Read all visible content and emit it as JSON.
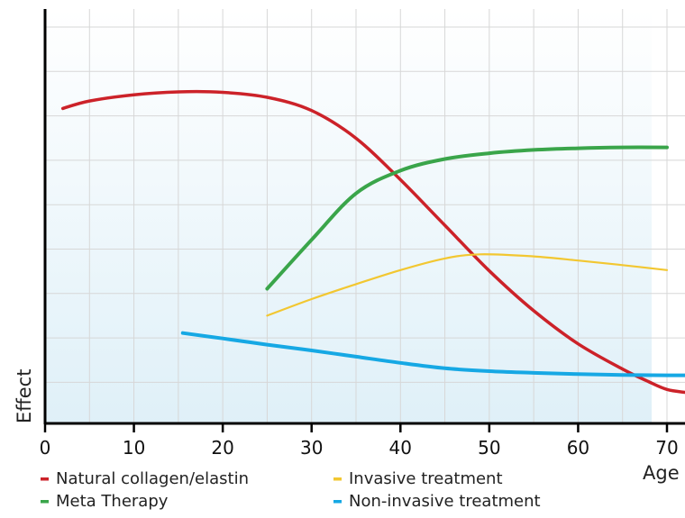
{
  "chart_data": {
    "type": "line",
    "title": "",
    "xlabel": "Age",
    "ylabel": "Effect",
    "xlim": [
      0,
      72
    ],
    "ylim": [
      0,
      10
    ],
    "x_ticks": [
      "0",
      "10",
      "20",
      "30",
      "40",
      "50",
      "60",
      "70"
    ],
    "y_ticks": [],
    "grid": true,
    "legend_position": "bottom",
    "series": [
      {
        "name": "Natural collagen/elastin",
        "color": "#cc2229",
        "x": [
          2,
          5,
          10,
          15,
          20,
          25,
          30,
          35,
          40,
          45,
          50,
          55,
          60,
          65,
          68,
          70,
          72
        ],
        "y": [
          7.6,
          7.78,
          7.93,
          8.0,
          7.99,
          7.87,
          7.55,
          6.88,
          5.88,
          4.78,
          3.68,
          2.72,
          1.92,
          1.31,
          1.0,
          0.82,
          0.75
        ]
      },
      {
        "name": "Meta Therapy",
        "color": "#3aa54a",
        "x": [
          25,
          30,
          35,
          40,
          45,
          50,
          55,
          60,
          65,
          70
        ],
        "y": [
          3.25,
          4.43,
          5.55,
          6.1,
          6.38,
          6.52,
          6.6,
          6.64,
          6.66,
          6.66
        ]
      },
      {
        "name": "Invasive treatment",
        "color": "#f2c731",
        "x": [
          25,
          30,
          35,
          40,
          45,
          49,
          55,
          60,
          65,
          70
        ],
        "y": [
          2.6,
          3.0,
          3.36,
          3.7,
          3.98,
          4.08,
          4.03,
          3.93,
          3.82,
          3.7
        ]
      },
      {
        "name": "Non-invasive treatment",
        "color": "#16a8e4",
        "x": [
          15.5,
          20,
          25,
          30,
          35,
          40,
          45,
          50,
          55,
          60,
          65,
          70,
          72
        ],
        "y": [
          2.18,
          2.05,
          1.9,
          1.76,
          1.61,
          1.46,
          1.33,
          1.26,
          1.22,
          1.19,
          1.17,
          1.16,
          1.16
        ]
      }
    ]
  }
}
